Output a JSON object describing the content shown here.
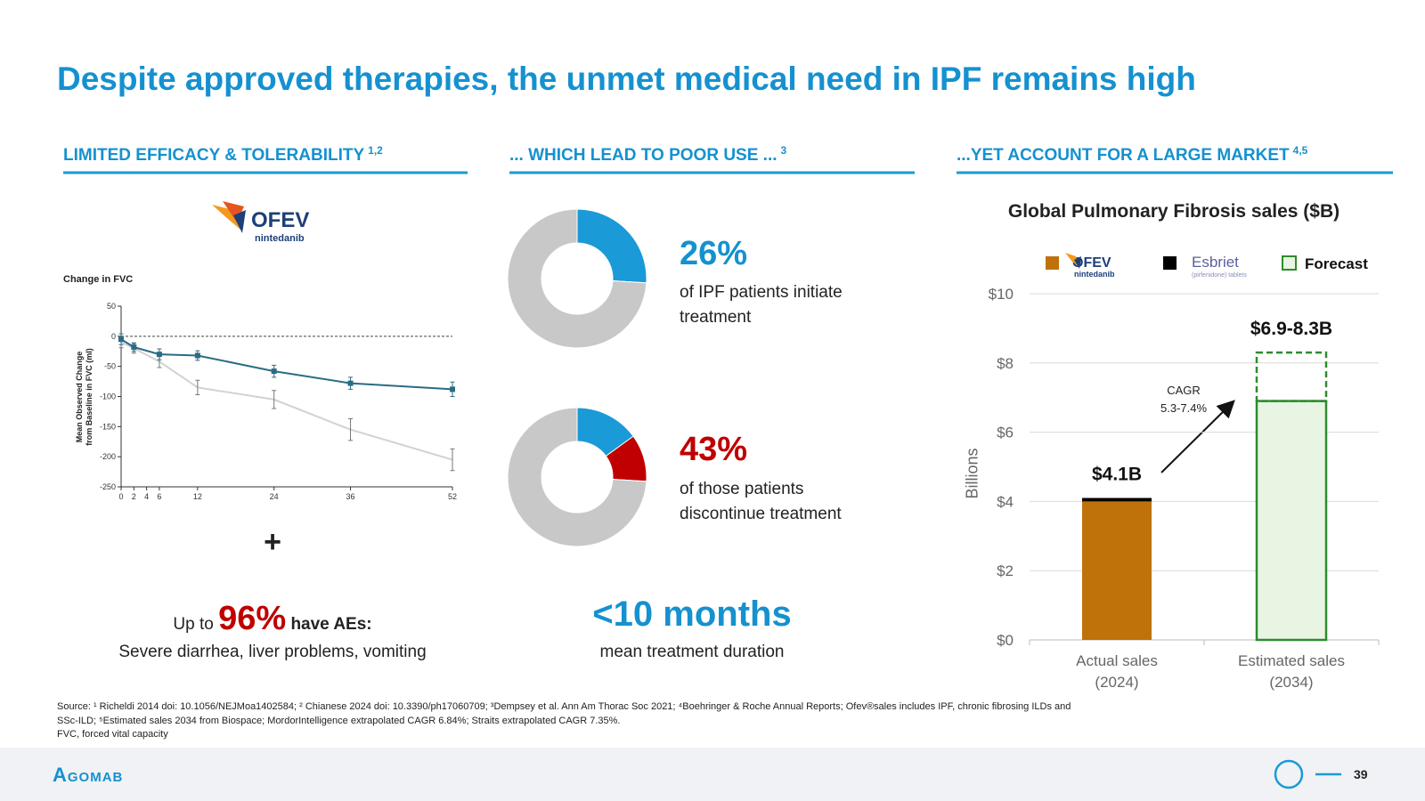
{
  "title": "Despite approved therapies, the unmet medical need in IPF remains high",
  "sections": [
    {
      "heading": "LIMITED EFFICACY & TOLERABILITY",
      "refs": "1,2"
    },
    {
      "heading": "... WHICH LEAD TO POOR USE ...",
      "refs": "3"
    },
    {
      "heading": "...YET ACCOUNT FOR A LARGE MARKET",
      "refs": "4,5"
    }
  ],
  "efficacy": {
    "logo": {
      "name": "OFEV",
      "generic": "nintedanib"
    },
    "plus": "+",
    "ae": {
      "prefix": "Up to",
      "value": "96%",
      "suffix": "have AEs:",
      "detail": "Severe diarrhea, liver problems, vomiting"
    }
  },
  "use": {
    "stats": [
      {
        "value": "26%",
        "text": "of IPF patients initiate\ntreatment"
      },
      {
        "value": "43%",
        "text": "of those patients\ndiscontinue treatment"
      }
    ],
    "duration": {
      "value": "<10 months",
      "text": "mean treatment duration"
    }
  },
  "chart_data": [
    {
      "type": "line",
      "title": "Change in FVC",
      "ylabel": "Mean Observed Change\nfrom Baseline in FVC (ml)",
      "x": [
        0,
        2,
        6,
        12,
        24,
        36,
        52
      ],
      "xlim": [
        0,
        52
      ],
      "xticks": [
        0,
        2,
        4,
        6,
        12,
        24,
        36,
        52
      ],
      "ylim": [
        -250,
        50
      ],
      "yticks": [
        50,
        0,
        -50,
        -100,
        -150,
        -200,
        -250
      ],
      "reference_line": 0,
      "series": [
        {
          "color": "#2b6c85",
          "marker": "square",
          "values": [
            -5,
            -18,
            -30,
            -32,
            -58,
            -78,
            -88
          ],
          "errors": [
            9,
            7,
            9,
            8,
            10,
            10,
            12
          ]
        },
        {
          "color": "#d2d2d2",
          "error_color": "#777777",
          "values": [
            -10,
            -20,
            -42,
            -85,
            -105,
            -155,
            -205
          ],
          "errors": [
            9,
            8,
            10,
            12,
            15,
            18,
            18
          ]
        }
      ]
    },
    {
      "type": "donut",
      "values": [
        26,
        74
      ],
      "colors": [
        "#1a9ad6",
        "#c8c8c8"
      ]
    },
    {
      "type": "donut",
      "values": [
        15,
        11,
        74
      ],
      "colors": [
        "#1a9ad6",
        "#c00000",
        "#c8c8c8"
      ]
    },
    {
      "type": "bar",
      "stacked": true,
      "title": "Global Pulmonary Fibrosis sales ($B)",
      "ylabel": "Billions",
      "categories": [
        "Actual sales\n(2024)",
        "Estimated sales\n(2034)"
      ],
      "ylim": [
        0,
        10
      ],
      "yticks": [
        {
          "value": 0,
          "label": "$0"
        },
        {
          "value": 2,
          "label": "$2"
        },
        {
          "value": 4,
          "label": "$4"
        },
        {
          "value": 6,
          "label": "$6"
        },
        {
          "value": 8,
          "label": "$8"
        },
        {
          "value": 10,
          "label": "$10"
        }
      ],
      "grid": true,
      "series": [
        {
          "name": "OFEV",
          "generic": "nintedanib",
          "color": "#bf720a",
          "values": [
            4.0,
            null
          ]
        },
        {
          "name": "Esbriet",
          "generic": "(pirfenidone) tablets",
          "color": "#000000",
          "values": [
            0.1,
            null
          ]
        },
        {
          "name": "Forecast",
          "color": "#e8f5e3",
          "edge": "#2e8b2e",
          "values": [
            null,
            6.9
          ]
        }
      ],
      "range": {
        "color": "#2e8b2e",
        "values": [
          null,
          1.4
        ]
      },
      "annotations": [
        {
          "text": "$4.1B",
          "category": 0
        },
        {
          "text": "$6.9-8.3B",
          "category": 1
        }
      ],
      "cagr": "CAGR\n5.3-7.4%"
    }
  ],
  "footer": {
    "source": "Source: ¹ Richeldi 2014 doi: 10.1056/NEJMoa1402584; ² Chianese 2024 doi: 10.3390/ph17060709; ³Dempsey et al. Ann Am Thorac Soc 2021; ⁴Boehringer & Roche Annual Reports; Ofev®sales includes IPF, chronic fibrosing ILDs and SSc-ILD; ⁵Estimated sales 2034 from Biospace; MordorIntelligence extrapolated CAGR 6.84%; Straits extrapolated CAGR 7.35%.",
    "note": "FVC, forced vital capacity",
    "company": "Agomab",
    "page": "39"
  }
}
